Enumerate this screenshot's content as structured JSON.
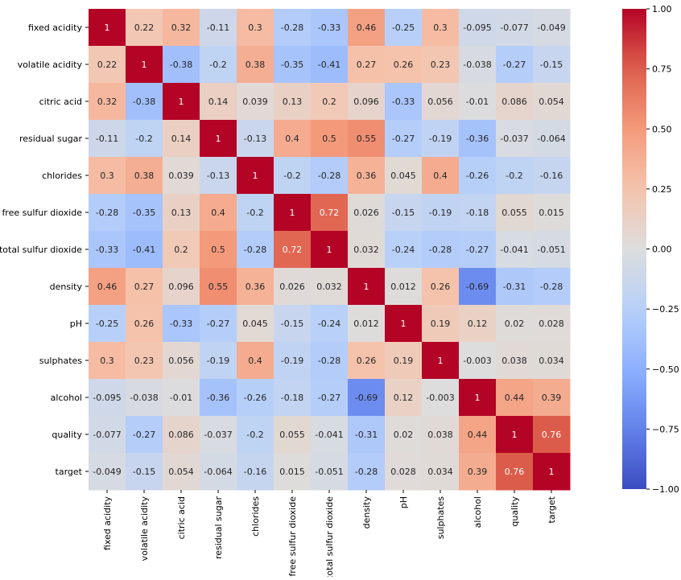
{
  "chart_data": {
    "type": "heatmap",
    "title": "",
    "xlabel": "",
    "ylabel": "",
    "colormap": "coolwarm",
    "vmin": -1.0,
    "vmax": 1.0,
    "colorbar_ticks": [
      "1.00",
      "0.75",
      "0.50",
      "0.25",
      "0.00",
      "−0.25",
      "−0.50",
      "−0.75",
      "−1.00"
    ],
    "colorbar_tick_values": [
      1.0,
      0.75,
      0.5,
      0.25,
      0.0,
      -0.25,
      -0.5,
      -0.75,
      -1.0
    ],
    "labels": [
      "fixed acidity",
      "volatile acidity",
      "citric acid",
      "residual sugar",
      "chlorides",
      "free sulfur dioxide",
      "total sulfur dioxide",
      "density",
      "pH",
      "sulphates",
      "alcohol",
      "quality",
      "target"
    ],
    "annotations": [
      [
        "1",
        "0.22",
        "0.32",
        "-0.11",
        "0.3",
        "-0.28",
        "-0.33",
        "0.46",
        "-0.25",
        "0.3",
        "-0.095",
        "-0.077",
        "-0.049"
      ],
      [
        "0.22",
        "1",
        "-0.38",
        "-0.2",
        "0.38",
        "-0.35",
        "-0.41",
        "0.27",
        "0.26",
        "0.23",
        "-0.038",
        "-0.27",
        "-0.15"
      ],
      [
        "0.32",
        "-0.38",
        "1",
        "0.14",
        "0.039",
        "0.13",
        "0.2",
        "0.096",
        "-0.33",
        "0.056",
        "-0.01",
        "0.086",
        "0.054"
      ],
      [
        "-0.11",
        "-0.2",
        "0.14",
        "1",
        "-0.13",
        "0.4",
        "0.5",
        "0.55",
        "-0.27",
        "-0.19",
        "-0.36",
        "-0.037",
        "-0.064"
      ],
      [
        "0.3",
        "0.38",
        "0.039",
        "-0.13",
        "1",
        "-0.2",
        "-0.28",
        "0.36",
        "0.045",
        "0.4",
        "-0.26",
        "-0.2",
        "-0.16"
      ],
      [
        "-0.28",
        "-0.35",
        "0.13",
        "0.4",
        "-0.2",
        "1",
        "0.72",
        "0.026",
        "-0.15",
        "-0.19",
        "-0.18",
        "0.055",
        "0.015"
      ],
      [
        "-0.33",
        "-0.41",
        "0.2",
        "0.5",
        "-0.28",
        "0.72",
        "1",
        "0.032",
        "-0.24",
        "-0.28",
        "-0.27",
        "-0.041",
        "-0.051"
      ],
      [
        "0.46",
        "0.27",
        "0.096",
        "0.55",
        "0.36",
        "0.026",
        "0.032",
        "1",
        "0.012",
        "0.26",
        "-0.69",
        "-0.31",
        "-0.28"
      ],
      [
        "-0.25",
        "0.26",
        "-0.33",
        "-0.27",
        "0.045",
        "-0.15",
        "-0.24",
        "0.012",
        "1",
        "0.19",
        "0.12",
        "0.02",
        "0.028"
      ],
      [
        "0.3",
        "0.23",
        "0.056",
        "-0.19",
        "0.4",
        "-0.19",
        "-0.28",
        "0.26",
        "0.19",
        "1",
        "-0.003",
        "0.038",
        "0.034"
      ],
      [
        "-0.095",
        "-0.038",
        "-0.01",
        "-0.36",
        "-0.26",
        "-0.18",
        "-0.27",
        "-0.69",
        "0.12",
        "-0.003",
        "1",
        "0.44",
        "0.39"
      ],
      [
        "-0.077",
        "-0.27",
        "0.086",
        "-0.037",
        "-0.2",
        "0.055",
        "-0.041",
        "-0.31",
        "0.02",
        "0.038",
        "0.44",
        "1",
        "0.76"
      ],
      [
        "-0.049",
        "-0.15",
        "0.054",
        "-0.064",
        "-0.16",
        "0.015",
        "-0.051",
        "-0.28",
        "0.028",
        "0.034",
        "0.39",
        "0.76",
        "1"
      ]
    ]
  }
}
